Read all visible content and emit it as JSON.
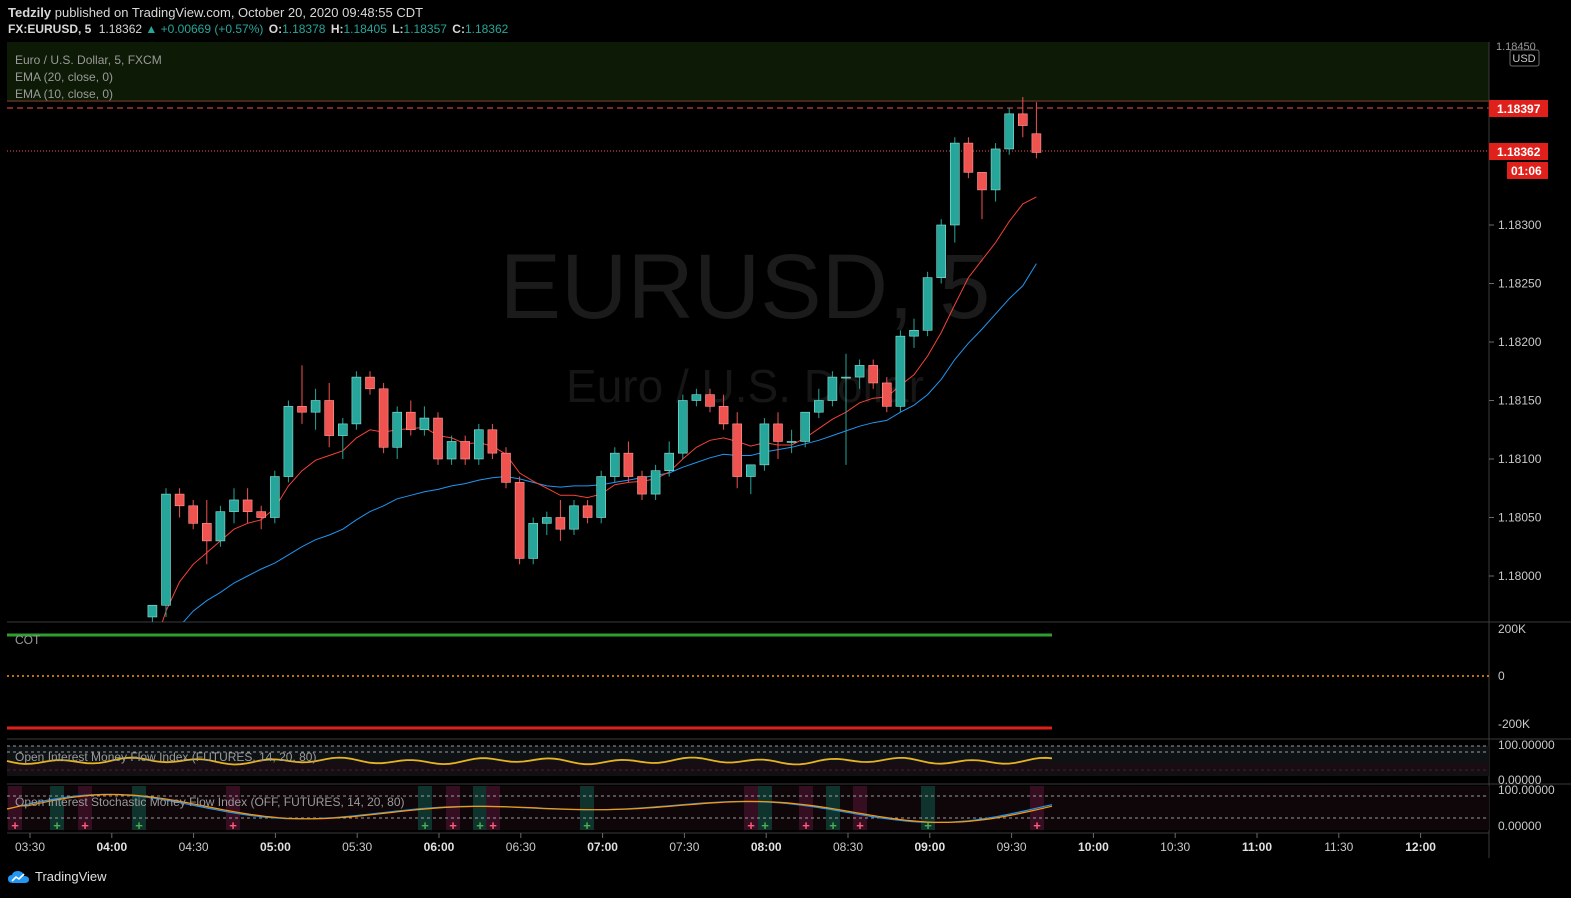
{
  "header": {
    "publisher": "Tedzily",
    "published_text": "published on TradingView.com, October 20, 2020 09:48:55 CDT",
    "symbol": "FX:EURUSD, 5",
    "last": "1.18362",
    "change": "▲ +0.00669 (+0.57%)",
    "o_label": "O:",
    "o": "1.18378",
    "h_label": "H:",
    "h": "1.18405",
    "l_label": "L:",
    "l": "1.18357",
    "c_label": "C:",
    "c": "1.18362"
  },
  "main_pane": {
    "legend": [
      "Euro / U.S. Dollar, 5, FXCM",
      "EMA (20, close, 0)",
      "EMA (10, close, 0)"
    ],
    "watermark_symbol": "EURUSD, 5",
    "watermark_name": "Euro / U.S. Dollar",
    "currency": "USD",
    "price_top": "1.18450",
    "marker_high": "1.18397",
    "marker_last": "1.18362",
    "countdown": "01:06"
  },
  "cot_pane": {
    "label": "COT",
    "ticks": [
      "200K",
      "0",
      "-200K"
    ]
  },
  "oimfi_pane": {
    "label": "Open Interest Money Flow Index (FUTURES, 14, 20, 80)",
    "ticks": [
      "100.00000",
      "0.00000"
    ]
  },
  "oismfi_pane": {
    "label": "Open Interest Stochastic Money Flow Index (OFF, FUTURES, 14, 20, 80)",
    "ticks": [
      "100.00000",
      "0.00000"
    ]
  },
  "time_axis": [
    "03:30",
    "04:00",
    "04:30",
    "05:00",
    "05:30",
    "06:00",
    "06:30",
    "07:00",
    "07:30",
    "08:00",
    "08:30",
    "09:00",
    "09:30",
    "10:00",
    "10:30",
    "11:00",
    "11:30",
    "12:00"
  ],
  "footer": {
    "brand": "TradingView"
  },
  "colors": {
    "bull": "#26a69a",
    "bear": "#ef5350",
    "ema20": "#2196f3",
    "ema10": "#f44336",
    "bg": "#000000"
  },
  "chart_data": {
    "type": "candlestick",
    "title": "Euro / U.S. Dollar, 5, FXCM",
    "ylim": [
      1.1797,
      1.1845
    ],
    "y_ticks": [
      1.18,
      1.1805,
      1.181,
      1.1815,
      1.182,
      1.1825,
      1.183
    ],
    "time_start": "03:30",
    "bar_minutes": 5,
    "candles": [
      [
        1.17965,
        1.17975,
        1.1796,
        1.17975
      ],
      [
        1.17975,
        1.18075,
        1.17965,
        1.1807
      ],
      [
        1.1807,
        1.18075,
        1.1805,
        1.1806
      ],
      [
        1.1806,
        1.18065,
        1.1804,
        1.18045
      ],
      [
        1.18045,
        1.18065,
        1.1801,
        1.1803
      ],
      [
        1.1803,
        1.1806,
        1.18025,
        1.18055
      ],
      [
        1.18055,
        1.18075,
        1.18045,
        1.18065
      ],
      [
        1.18065,
        1.18075,
        1.18045,
        1.18055
      ],
      [
        1.18055,
        1.1806,
        1.1804,
        1.1805
      ],
      [
        1.1805,
        1.1809,
        1.18045,
        1.18085
      ],
      [
        1.18085,
        1.1815,
        1.1808,
        1.18145
      ],
      [
        1.18145,
        1.1818,
        1.1813,
        1.1814
      ],
      [
        1.1814,
        1.1816,
        1.18125,
        1.1815
      ],
      [
        1.1815,
        1.18165,
        1.1811,
        1.1812
      ],
      [
        1.1812,
        1.18135,
        1.181,
        1.1813
      ],
      [
        1.1813,
        1.18175,
        1.18125,
        1.1817
      ],
      [
        1.1817,
        1.18175,
        1.18155,
        1.1816
      ],
      [
        1.1816,
        1.18165,
        1.18105,
        1.1811
      ],
      [
        1.1811,
        1.18145,
        1.181,
        1.1814
      ],
      [
        1.1814,
        1.1815,
        1.1812,
        1.18125
      ],
      [
        1.18125,
        1.18145,
        1.1812,
        1.18135
      ],
      [
        1.18135,
        1.1814,
        1.18095,
        1.181
      ],
      [
        1.181,
        1.1812,
        1.18095,
        1.18115
      ],
      [
        1.18115,
        1.1812,
        1.18095,
        1.181
      ],
      [
        1.181,
        1.1813,
        1.18095,
        1.18125
      ],
      [
        1.18125,
        1.1813,
        1.181,
        1.18105
      ],
      [
        1.18105,
        1.1811,
        1.18075,
        1.1808
      ],
      [
        1.1808,
        1.18085,
        1.1801,
        1.18015
      ],
      [
        1.18015,
        1.1805,
        1.1801,
        1.18045
      ],
      [
        1.18045,
        1.18055,
        1.18035,
        1.1805
      ],
      [
        1.1805,
        1.18065,
        1.1803,
        1.1804
      ],
      [
        1.1804,
        1.18065,
        1.18035,
        1.1806
      ],
      [
        1.1806,
        1.18065,
        1.18045,
        1.1805
      ],
      [
        1.1805,
        1.1809,
        1.18045,
        1.18085
      ],
      [
        1.18085,
        1.1811,
        1.1808,
        1.18105
      ],
      [
        1.18105,
        1.18115,
        1.1808,
        1.18085
      ],
      [
        1.18085,
        1.1809,
        1.18065,
        1.1807
      ],
      [
        1.1807,
        1.18095,
        1.18065,
        1.1809
      ],
      [
        1.1809,
        1.18115,
        1.18085,
        1.18105
      ],
      [
        1.18105,
        1.18155,
        1.181,
        1.1815
      ],
      [
        1.1815,
        1.1816,
        1.18145,
        1.18155
      ],
      [
        1.18155,
        1.1816,
        1.1814,
        1.18145
      ],
      [
        1.18145,
        1.18155,
        1.18125,
        1.1813
      ],
      [
        1.1813,
        1.1814,
        1.18075,
        1.18085
      ],
      [
        1.18085,
        1.18095,
        1.1807,
        1.18095
      ],
      [
        1.18095,
        1.18135,
        1.1809,
        1.1813
      ],
      [
        1.1813,
        1.1814,
        1.181,
        1.18115
      ],
      [
        1.18115,
        1.18125,
        1.18105,
        1.18115
      ],
      [
        1.18115,
        1.1814,
        1.1811,
        1.1814
      ],
      [
        1.1814,
        1.1816,
        1.18135,
        1.1815
      ],
      [
        1.1815,
        1.18175,
        1.18145,
        1.1817
      ],
      [
        1.1817,
        1.1819,
        1.18095,
        1.1817
      ],
      [
        1.1817,
        1.18185,
        1.1816,
        1.1818
      ],
      [
        1.1818,
        1.18185,
        1.1816,
        1.18165
      ],
      [
        1.18165,
        1.1817,
        1.1814,
        1.18145
      ],
      [
        1.18145,
        1.1821,
        1.1814,
        1.18205
      ],
      [
        1.18205,
        1.1822,
        1.18195,
        1.1821
      ],
      [
        1.1821,
        1.1826,
        1.18205,
        1.18255
      ],
      [
        1.18255,
        1.18305,
        1.1825,
        1.183
      ],
      [
        1.183,
        1.18375,
        1.18285,
        1.1837
      ],
      [
        1.1837,
        1.18375,
        1.1834,
        1.18345
      ],
      [
        1.18345,
        1.18345,
        1.18305,
        1.1833
      ],
      [
        1.1833,
        1.1837,
        1.1832,
        1.18365
      ],
      [
        1.18365,
        1.184,
        1.1836,
        1.18395
      ],
      [
        1.18395,
        1.1841,
        1.18375,
        1.18385
      ],
      [
        1.18378,
        1.18405,
        1.18357,
        1.18362
      ]
    ],
    "ema20": [
      1.1792,
      1.1794,
      1.17957,
      1.1797,
      1.17979,
      1.17986,
      1.17994,
      1.18,
      1.18006,
      1.18011,
      1.18018,
      1.18025,
      1.18031,
      1.18035,
      1.1804,
      1.18048,
      1.18055,
      1.1806,
      1.18066,
      1.18069,
      1.18072,
      1.18074,
      1.18077,
      1.18079,
      1.18082,
      1.18084,
      1.18085,
      1.18083,
      1.1808,
      1.18077,
      1.18076,
      1.18077,
      1.18077,
      1.18078,
      1.1808,
      1.18082,
      1.18084,
      1.18086,
      1.18088,
      1.18093,
      1.18097,
      1.18101,
      1.18104,
      1.18103,
      1.18103,
      1.18106,
      1.18108,
      1.1811,
      1.18113,
      1.18116,
      1.1812,
      1.18124,
      1.18128,
      1.18131,
      1.18133,
      1.1814,
      1.18146,
      1.18155,
      1.18168,
      1.18185,
      1.18199,
      1.18211,
      1.18224,
      1.18237,
      1.18248,
      1.18267
    ],
    "ema10": [
      1.17935,
      1.1797,
      1.17995,
      1.1801,
      1.1802,
      1.1803,
      1.1804,
      1.18045,
      1.18048,
      1.18058,
      1.18077,
      1.1809,
      1.18099,
      1.18103,
      1.18107,
      1.18118,
      1.18125,
      1.18123,
      1.18125,
      1.18126,
      1.18127,
      1.1812,
      1.18118,
      1.18113,
      1.18114,
      1.18111,
      1.18104,
      1.18088,
      1.18081,
      1.18075,
      1.18069,
      1.18069,
      1.18067,
      1.1807,
      1.18078,
      1.1808,
      1.18081,
      1.18083,
      1.18089,
      1.181,
      1.1811,
      1.18116,
      1.18118,
      1.18115,
      1.18111,
      1.18114,
      1.18112,
      1.18112,
      1.18118,
      1.18126,
      1.18134,
      1.1814,
      1.18148,
      1.18152,
      1.18153,
      1.18163,
      1.18172,
      1.18188,
      1.18208,
      1.18232,
      1.18255,
      1.1827,
      1.18285,
      1.18303,
      1.18318,
      1.18324
    ]
  }
}
